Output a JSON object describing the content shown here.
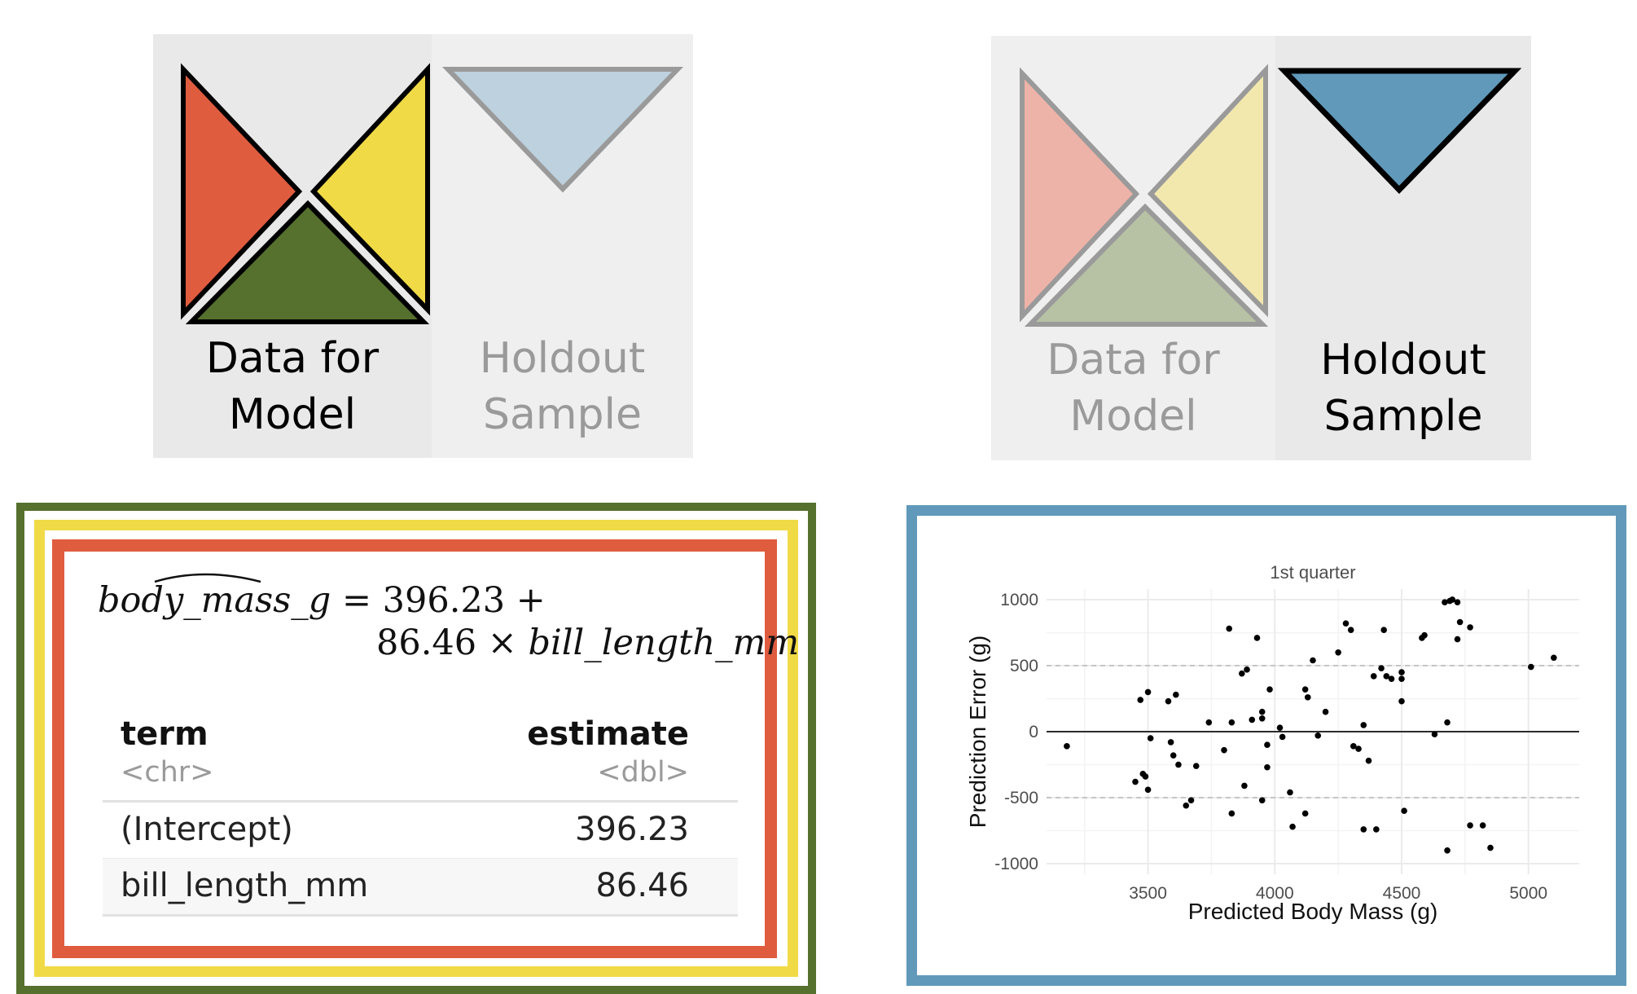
{
  "left_diagram": {
    "model_label": "Data for\nModel",
    "holdout_label": "Holdout\nSample",
    "active": "model"
  },
  "right_diagram": {
    "model_label": "Data for\nModel",
    "holdout_label": "Holdout\nSample",
    "active": "holdout"
  },
  "colors": {
    "red": "#E05C3F",
    "yellow": "#F0DA46",
    "green": "#56702D",
    "blue": "#6099BA",
    "red_faded": "#EEB3A8",
    "yellow_faded": "#F2E8AE",
    "green_faded": "#B7C2A5",
    "blue_faded": "#BDD1DE"
  },
  "model_box": {
    "equation_lhs": "body_mass_g",
    "equation_line1": " = 396.23 +",
    "equation_coef": "86.46 × ",
    "equation_var": "bill_length_mm",
    "table": {
      "headers": [
        "term",
        "estimate"
      ],
      "types": [
        "<chr>",
        "<dbl>"
      ],
      "rows": [
        [
          "(Intercept)",
          "396.23"
        ],
        [
          "bill_length_mm",
          "86.46"
        ]
      ]
    }
  },
  "chart_data": {
    "type": "scatter",
    "title": "1st quarter",
    "xlabel": "Predicted Body Mass (g)",
    "ylabel": "Prediction Error (g)",
    "xlim": [
      3100,
      5200
    ],
    "ylim": [
      -1080,
      1080
    ],
    "xticks": [
      3500,
      4000,
      4500,
      5000
    ],
    "yticks": [
      1000,
      500,
      0,
      -500,
      -1000
    ],
    "reference_lines": [
      {
        "y": 500,
        "style": "dashed"
      },
      {
        "y": 0,
        "style": "solid"
      },
      {
        "y": -500,
        "style": "dashed"
      }
    ],
    "grid": true,
    "points": [
      [
        3180,
        -110
      ],
      [
        3450,
        -380
      ],
      [
        3470,
        240
      ],
      [
        3480,
        -320
      ],
      [
        3490,
        -340
      ],
      [
        3500,
        300
      ],
      [
        3500,
        -440
      ],
      [
        3510,
        -50
      ],
      [
        3580,
        230
      ],
      [
        3590,
        -80
      ],
      [
        3600,
        -180
      ],
      [
        3610,
        280
      ],
      [
        3620,
        -250
      ],
      [
        3650,
        -560
      ],
      [
        3670,
        -520
      ],
      [
        3690,
        -260
      ],
      [
        3740,
        70
      ],
      [
        3800,
        -140
      ],
      [
        3820,
        780
      ],
      [
        3830,
        70
      ],
      [
        3830,
        -620
      ],
      [
        3870,
        440
      ],
      [
        3880,
        -410
      ],
      [
        3890,
        470
      ],
      [
        3910,
        90
      ],
      [
        3930,
        710
      ],
      [
        3950,
        100
      ],
      [
        3950,
        150
      ],
      [
        3950,
        -520
      ],
      [
        3970,
        -100
      ],
      [
        3970,
        -270
      ],
      [
        3980,
        320
      ],
      [
        4020,
        30
      ],
      [
        4030,
        -40
      ],
      [
        4060,
        -460
      ],
      [
        4070,
        -720
      ],
      [
        4120,
        -620
      ],
      [
        4120,
        320
      ],
      [
        4130,
        260
      ],
      [
        4150,
        540
      ],
      [
        4170,
        -30
      ],
      [
        4200,
        150
      ],
      [
        4250,
        600
      ],
      [
        4280,
        820
      ],
      [
        4300,
        770
      ],
      [
        4310,
        -110
      ],
      [
        4330,
        -130
      ],
      [
        4350,
        50
      ],
      [
        4350,
        -740
      ],
      [
        4370,
        -220
      ],
      [
        4390,
        420
      ],
      [
        4400,
        -740
      ],
      [
        4420,
        480
      ],
      [
        4430,
        770
      ],
      [
        4440,
        420
      ],
      [
        4460,
        400
      ],
      [
        4500,
        450
      ],
      [
        4500,
        230
      ],
      [
        4500,
        400
      ],
      [
        4510,
        -600
      ],
      [
        4580,
        710
      ],
      [
        4590,
        730
      ],
      [
        4630,
        -20
      ],
      [
        4670,
        980
      ],
      [
        4680,
        70
      ],
      [
        4690,
        990
      ],
      [
        4700,
        1000
      ],
      [
        4720,
        980
      ],
      [
        4720,
        700
      ],
      [
        4730,
        830
      ],
      [
        4770,
        790
      ],
      [
        4770,
        -710
      ],
      [
        4820,
        -710
      ],
      [
        4850,
        -880
      ],
      [
        4680,
        -900
      ],
      [
        5010,
        490
      ],
      [
        5100,
        560
      ]
    ]
  }
}
